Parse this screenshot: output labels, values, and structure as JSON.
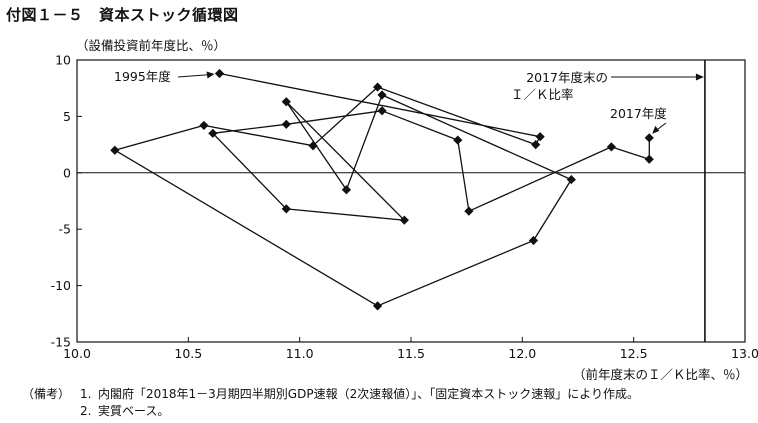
{
  "figure": {
    "title": "付図１－５　資本ストック循環図",
    "notes_label": "（備考）",
    "notes": [
      {
        "num": "1.",
        "text": "内閣府「2018年1－3月期四半期別GDP速報（2次速報値）」、「固定資本ストック速報」により作成。"
      },
      {
        "num": "2.",
        "text": "実質ベース。"
      }
    ]
  },
  "chart_data": {
    "type": "line",
    "title": "",
    "xlabel": "（前年度末のＩ／Ｋ比率、％）",
    "ylabel": "（設備投資前年度比、％）",
    "xlim": [
      10.0,
      13.0
    ],
    "ylim": [
      -15,
      10
    ],
    "xticks": [
      "10.0",
      "10.5",
      "11.0",
      "11.5",
      "12.0",
      "12.5",
      "13.0"
    ],
    "yticks": [
      "10",
      "5",
      "0",
      "-5",
      "-10",
      "-15"
    ],
    "zero_line": 0,
    "vertical_line": {
      "x": 12.82,
      "label_line1": "2017年度末の",
      "label_line2": "Ｉ／Ｋ比率"
    },
    "annotations": [
      {
        "text": "1995年度",
        "point_index": 0
      },
      {
        "text": "2017年度",
        "point_index": 22
      }
    ],
    "points": [
      {
        "x": 10.64,
        "y": 8.8
      },
      {
        "x": 12.08,
        "y": 3.2
      },
      {
        "x": 12.06,
        "y": 2.5
      },
      {
        "x": 11.35,
        "y": 7.6
      },
      {
        "x": 11.06,
        "y": 2.4
      },
      {
        "x": 10.57,
        "y": 4.2
      },
      {
        "x": 10.17,
        "y": 2.0
      },
      {
        "x": 11.35,
        "y": -11.8
      },
      {
        "x": 12.05,
        "y": -6.0
      },
      {
        "x": 12.22,
        "y": -0.6
      },
      {
        "x": 11.37,
        "y": 6.9
      },
      {
        "x": 11.21,
        "y": -1.5
      },
      {
        "x": 10.94,
        "y": 6.3
      },
      {
        "x": 11.47,
        "y": -4.2
      },
      {
        "x": 10.94,
        "y": -3.2
      },
      {
        "x": 10.61,
        "y": 3.5
      },
      {
        "x": 10.94,
        "y": 4.3
      },
      {
        "x": 11.37,
        "y": 5.5
      },
      {
        "x": 11.71,
        "y": 2.9
      },
      {
        "x": 11.76,
        "y": -3.4
      },
      {
        "x": 12.4,
        "y": 2.3
      },
      {
        "x": 12.57,
        "y": 1.2
      },
      {
        "x": 12.57,
        "y": 3.1
      }
    ]
  }
}
